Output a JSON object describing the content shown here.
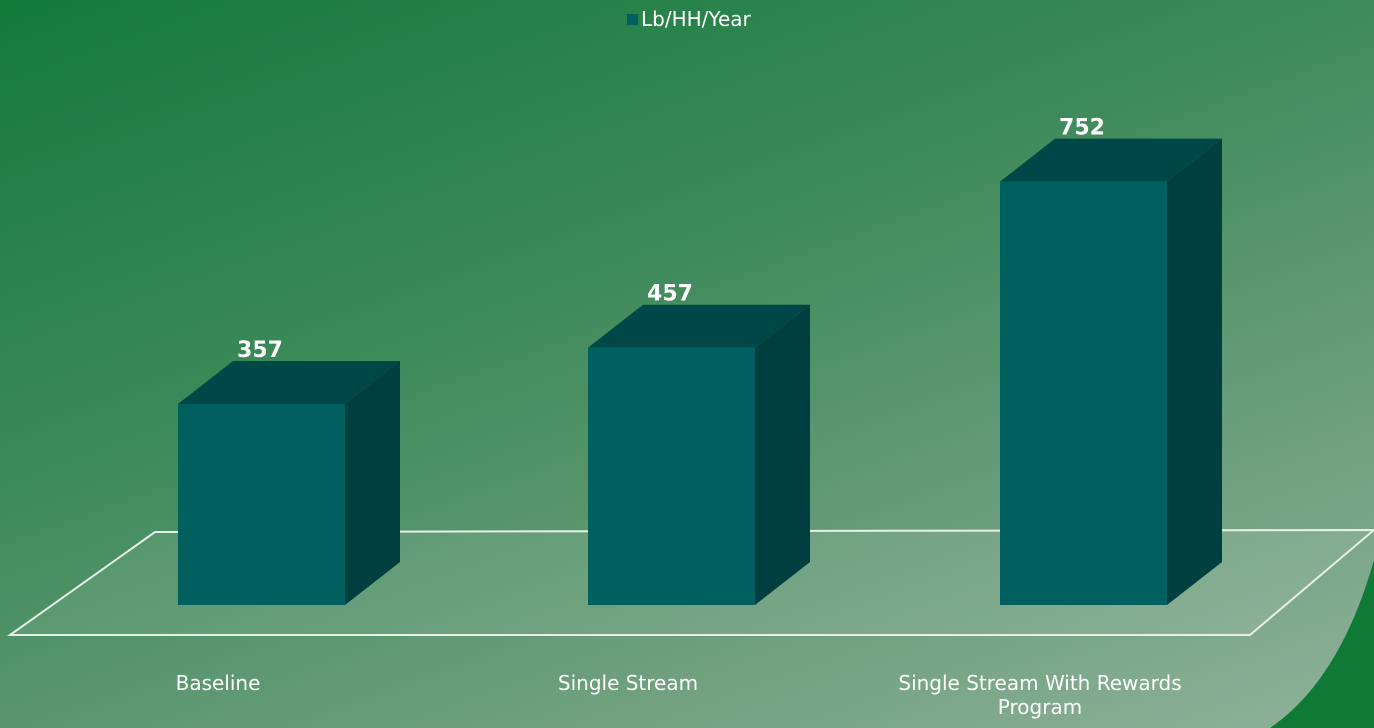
{
  "chart_data": {
    "type": "bar3d",
    "categories": [
      "Baseline",
      "Single Stream",
      "Single Stream With Rewards Program"
    ],
    "series": [
      {
        "name": "Lb/HH/Year",
        "color": "#006060",
        "values": [
          357,
          457,
          752
        ]
      }
    ],
    "legend": "top"
  }
}
